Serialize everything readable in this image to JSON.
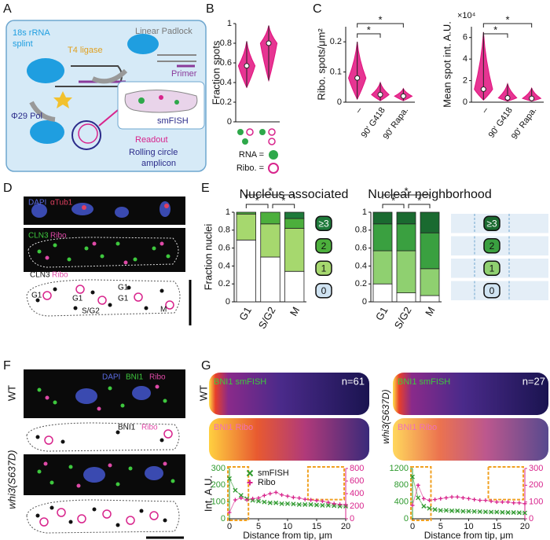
{
  "panel_labels": [
    "A",
    "B",
    "C",
    "D",
    "E",
    "F",
    "G"
  ],
  "schematic": {
    "splint": [
      "18s rRNA",
      "splint"
    ],
    "ligase": "T4 ligase",
    "padlock": "Linear Padlock",
    "primer": "Primer",
    "polymerase": "Φ29 Pol",
    "smfish": "smFISH",
    "readout": "Readout",
    "amplicon": [
      "Rolling circle",
      "amplicon"
    ]
  },
  "panel_d": {
    "stain_top": [
      "DAPI",
      "αTub1"
    ],
    "stain_mid": [
      "CLN3",
      "Ribo"
    ],
    "stain_bottom": [
      "CLN3",
      "Ribo"
    ],
    "phases": [
      "G1",
      "G1",
      "S/G2",
      "G1",
      "G1",
      "M"
    ]
  },
  "panel_f": {
    "stain_top": [
      "DAPI",
      "BNI1",
      "Ribo"
    ],
    "stain_bottom": [
      "BNI1",
      "Ribo"
    ],
    "strains": [
      "WT",
      "whi3(S637D)"
    ]
  },
  "panel_g": {
    "heatmaps": [
      {
        "label": "BNI1 smFISH",
        "n": "n=61"
      },
      {
        "label": "BNI1 Ribo"
      },
      {
        "label": "BNI1 smFISH",
        "n": "n=27"
      },
      {
        "label": "BNI1 Ribo"
      }
    ],
    "strains": [
      "WT",
      "whi3(S637D)"
    ]
  },
  "chart_data": [
    {
      "type": "violin",
      "y_label": "Fraction spots",
      "categories": [
        null,
        null
      ],
      "min": [
        0.35,
        0.42
      ],
      "median": [
        0.57,
        0.8
      ],
      "max": [
        0.82,
        0.98
      ],
      "color": "#e2127f",
      "ylim": [
        0,
        1
      ],
      "yticks": [
        0,
        0.2,
        0.4,
        0.6,
        0.8,
        1
      ],
      "legend_labels": [
        "RNA =",
        "Ribo. ="
      ]
    },
    {
      "type": "violin",
      "y_label": "Ribo. spots/μm²",
      "categories": [
        "–",
        "90' G418",
        "90' Rapa."
      ],
      "min": [
        0.01,
        0.005,
        0.005
      ],
      "median": [
        0.08,
        0.025,
        0.02
      ],
      "max": [
        0.2,
        0.065,
        0.045
      ],
      "color": "#e2127f",
      "ylim": [
        0,
        0.25
      ],
      "yticks": [
        0,
        0.1,
        0.2
      ],
      "annotations": [
        "*",
        "*"
      ]
    },
    {
      "type": "violin",
      "y_label": "Mean spot int. A.U.",
      "y_multiplier": "×10⁴",
      "categories": [
        "–",
        "90' G418",
        "90' Rapa."
      ],
      "min": [
        0.2,
        0.1,
        0.1
      ],
      "median": [
        1.2,
        0.4,
        0.35
      ],
      "max": [
        6.5,
        1.7,
        1.3
      ],
      "color": "#e2127f",
      "ylim": [
        0,
        7
      ],
      "yticks": [
        0,
        2,
        4,
        6
      ],
      "annotations": [
        "*",
        "*"
      ]
    },
    {
      "type": "stacked_bar",
      "title": "Nucleus associated",
      "y_label": "Fraction nuclei",
      "categories": [
        "G1",
        "S/G2",
        "M"
      ],
      "ylim": [
        0,
        1
      ],
      "yticks": [
        0,
        0.2,
        0.4,
        0.6,
        0.8,
        1
      ],
      "series": [
        {
          "name": "0",
          "color": "#ffffff",
          "values": [
            0.69,
            0.5,
            0.34
          ]
        },
        {
          "name": "1",
          "color": "#a6d86e",
          "values": [
            0.29,
            0.37,
            0.48
          ]
        },
        {
          "name": "2",
          "color": "#4caf3c",
          "values": [
            0.02,
            0.13,
            0.11
          ]
        },
        {
          "name": "≥3",
          "color": "#1e7a3a",
          "values": [
            0,
            0,
            0.07
          ]
        }
      ],
      "annotations": [
        "*",
        "*",
        "*"
      ]
    },
    {
      "type": "stacked_bar",
      "title": "Nuclear neighborhood",
      "categories": [
        "G1",
        "S/G2",
        "M"
      ],
      "ylim": [
        0,
        1
      ],
      "yticks": [
        0,
        0.2,
        0.4,
        0.6,
        0.8,
        1
      ],
      "series": [
        {
          "name": "0",
          "color": "#ffffff",
          "values": [
            0.2,
            0.1,
            0.07
          ]
        },
        {
          "name": "1",
          "color": "#8fd070",
          "values": [
            0.37,
            0.47,
            0.3
          ]
        },
        {
          "name": "2",
          "color": "#3aa040",
          "values": [
            0.3,
            0.3,
            0.4
          ]
        },
        {
          "name": "≥3",
          "color": "#1a6a30",
          "values": [
            0.13,
            0.13,
            0.23
          ]
        }
      ],
      "annotations": [
        "*",
        "*",
        "*"
      ]
    },
    {
      "type": "line",
      "y_label": "Int. A.U.",
      "x_label": "Distance from tip, μm",
      "legend": true,
      "x": [
        0,
        1,
        2,
        3,
        4,
        5,
        6,
        7,
        8,
        9,
        10,
        11,
        12,
        13,
        14,
        15,
        16,
        17,
        18,
        19,
        20
      ],
      "xlim": [
        0,
        20
      ],
      "xticks": [
        0,
        5,
        10,
        15,
        20
      ],
      "ylim": [
        0,
        300
      ],
      "yticks": [
        0,
        100,
        200,
        300
      ],
      "y2lim": [
        0,
        800
      ],
      "y2ticks": [
        0,
        200,
        400,
        600,
        800
      ],
      "series": [
        {
          "name": "smFISH",
          "color": "#2e9a2e",
          "marker": "x",
          "values": [
            240,
            170,
            140,
            120,
            110,
            105,
            100,
            95,
            95,
            90,
            90,
            88,
            85,
            85,
            85,
            82,
            80,
            80,
            78,
            75,
            75
          ]
        },
        {
          "name": "Ribo",
          "color": "#d8248c",
          "marker": "+",
          "axis": "y2",
          "values": [
            100,
            300,
            330,
            300,
            320,
            330,
            370,
            400,
            420,
            380,
            360,
            340,
            330,
            310,
            300,
            290,
            280,
            260,
            240,
            230,
            225
          ]
        }
      ]
    },
    {
      "type": "line",
      "x_label": "Distance from tip, μm",
      "x": [
        0,
        1,
        2,
        3,
        4,
        5,
        6,
        7,
        8,
        9,
        10,
        11,
        12,
        13,
        14,
        15,
        16,
        17,
        18,
        19,
        20
      ],
      "xlim": [
        0,
        20
      ],
      "xticks": [
        0,
        5,
        10,
        15,
        20
      ],
      "ylim": [
        0,
        1200
      ],
      "yticks": [
        0,
        400,
        800,
        1200
      ],
      "y2lim": [
        0,
        300
      ],
      "y2ticks": [
        0,
        100,
        200,
        300
      ],
      "series": [
        {
          "name": "smFISH",
          "color": "#2e9a2e",
          "marker": "x",
          "values": [
            1000,
            500,
            300,
            250,
            220,
            200,
            200,
            190,
            190,
            180,
            180,
            175,
            170,
            165,
            160,
            160,
            155,
            150,
            150,
            145,
            140
          ]
        },
        {
          "name": "Ribo",
          "color": "#d8248c",
          "marker": "+",
          "axis": "y2",
          "values": [
            80,
            200,
            120,
            110,
            115,
            120,
            125,
            130,
            130,
            125,
            120,
            115,
            110,
            110,
            105,
            100,
            100,
            100,
            95,
            95,
            90
          ]
        }
      ]
    }
  ]
}
